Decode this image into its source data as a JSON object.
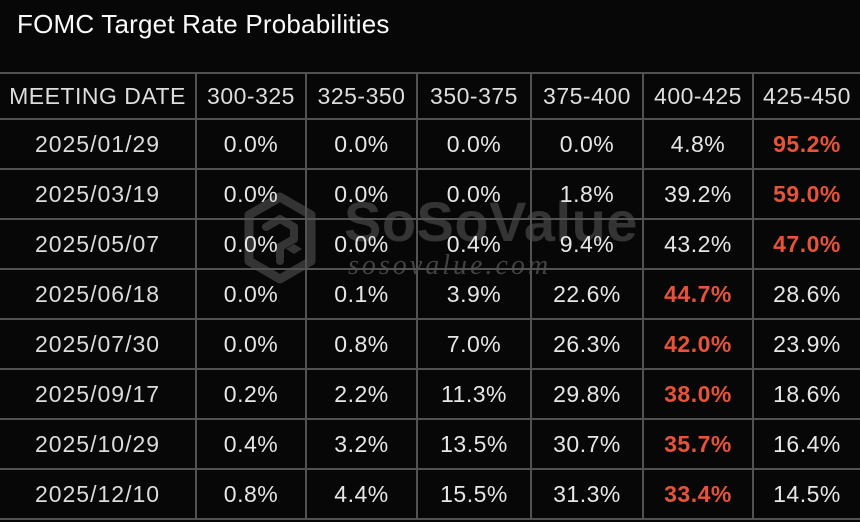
{
  "title": "FOMC Target Rate Probabilities",
  "watermark": {
    "brand": "SoSoValue",
    "site": "sosovalue.com",
    "logo_icon": "sosovalue-cube-logo"
  },
  "colors": {
    "background": "#070707",
    "text_primary": "#e6e6e6",
    "highlight_orange": "#e5543a",
    "grid_border": "#525252",
    "watermark_gray": "#343434"
  },
  "chart_data": {
    "type": "table",
    "title": "FOMC Target Rate Probabilities",
    "columns": [
      "MEETING DATE",
      "300-325",
      "325-350",
      "350-375",
      "375-400",
      "400-425",
      "425-450"
    ],
    "rows": [
      {
        "meeting_date": "2025/01/29",
        "probabilities": [
          "0.0%",
          "0.0%",
          "0.0%",
          "0.0%",
          "4.8%",
          "95.2%"
        ],
        "highlight_index": 5
      },
      {
        "meeting_date": "2025/03/19",
        "probabilities": [
          "0.0%",
          "0.0%",
          "0.0%",
          "1.8%",
          "39.2%",
          "59.0%"
        ],
        "highlight_index": 5
      },
      {
        "meeting_date": "2025/05/07",
        "probabilities": [
          "0.0%",
          "0.0%",
          "0.4%",
          "9.4%",
          "43.2%",
          "47.0%"
        ],
        "highlight_index": 5
      },
      {
        "meeting_date": "2025/06/18",
        "probabilities": [
          "0.0%",
          "0.1%",
          "3.9%",
          "22.6%",
          "44.7%",
          "28.6%"
        ],
        "highlight_index": 4
      },
      {
        "meeting_date": "2025/07/30",
        "probabilities": [
          "0.0%",
          "0.8%",
          "7.0%",
          "26.3%",
          "42.0%",
          "23.9%"
        ],
        "highlight_index": 4
      },
      {
        "meeting_date": "2025/09/17",
        "probabilities": [
          "0.2%",
          "2.2%",
          "11.3%",
          "29.8%",
          "38.0%",
          "18.6%"
        ],
        "highlight_index": 4
      },
      {
        "meeting_date": "2025/10/29",
        "probabilities": [
          "0.4%",
          "3.2%",
          "13.5%",
          "30.7%",
          "35.7%",
          "16.4%"
        ],
        "highlight_index": 4
      },
      {
        "meeting_date": "2025/12/10",
        "probabilities": [
          "0.8%",
          "4.4%",
          "15.5%",
          "31.3%",
          "33.4%",
          "14.5%"
        ],
        "highlight_index": 4
      }
    ]
  }
}
